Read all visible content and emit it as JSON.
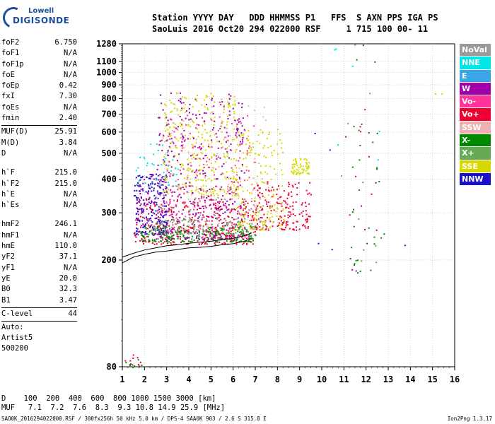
{
  "logo": {
    "line1": "Lowell",
    "line2": "DIGISONDE"
  },
  "header": {
    "line1": "Station YYYY DAY   DDD HHMMSS P1   FFS  S AXN PPS IGA PS",
    "line2": "SaoLuis 2016 Oct20 294 022000 RSF     1 715 100 00- 11"
  },
  "params": {
    "g1": [
      [
        "foF2",
        "6.750"
      ],
      [
        "foF1",
        "N/A"
      ],
      [
        "foF1p",
        "N/A"
      ],
      [
        "foE",
        "N/A"
      ],
      [
        "foEp",
        "0.42"
      ],
      [
        "fxI",
        "7.30"
      ],
      [
        "foEs",
        "N/A"
      ],
      [
        "fmin",
        "2.40"
      ]
    ],
    "g2": [
      [
        "MUF(D)",
        "25.91"
      ],
      [
        "M(D)",
        "3.84"
      ],
      [
        "D",
        "N/A"
      ]
    ],
    "g3": [
      [
        "h`F",
        "215.0"
      ],
      [
        "h`F2",
        "215.0"
      ],
      [
        "h`E",
        "N/A"
      ],
      [
        "h`Es",
        "N/A"
      ]
    ],
    "g4": [
      [
        "hmF2",
        "246.1"
      ],
      [
        "hmF1",
        "N/A"
      ],
      [
        "hmE",
        "110.0"
      ],
      [
        "yF2",
        "37.1"
      ],
      [
        "yF1",
        "N/A"
      ],
      [
        "yE",
        "20.0"
      ],
      [
        "B0",
        "32.3"
      ],
      [
        "B1",
        "3.47"
      ]
    ],
    "g5": [
      [
        "C-level",
        "44"
      ]
    ],
    "auto": [
      "Auto:",
      "Artist5",
      "500200"
    ]
  },
  "legend": [
    {
      "label": "NoVal",
      "color": "#9a9a9a"
    },
    {
      "label": "NNE",
      "color": "#00e6e6"
    },
    {
      "label": "E",
      "color": "#3aa6e8"
    },
    {
      "label": "W",
      "color": "#a000a8"
    },
    {
      "label": "Vo-",
      "color": "#ff3399"
    },
    {
      "label": "Vo+",
      "color": "#ee0033"
    },
    {
      "label": "SSW",
      "color": "#f0b0b0"
    },
    {
      "label": "X-",
      "color": "#008800"
    },
    {
      "label": "X+",
      "color": "#66aa55"
    },
    {
      "label": "SSE",
      "color": "#d8d800"
    },
    {
      "label": "NNW",
      "color": "#1a10c8"
    }
  ],
  "chart_data": {
    "type": "scatter",
    "title": "",
    "xlabel": "",
    "ylabel": "",
    "xlim": [
      1,
      16
    ],
    "ylim": [
      80,
      1280
    ],
    "xscale": "linear",
    "yscale": "log",
    "x_ticks": [
      1,
      2,
      3,
      4,
      5,
      6,
      7,
      8,
      9,
      10,
      11,
      12,
      13,
      14,
      15,
      16
    ],
    "y_ticks": [
      80,
      200,
      300,
      400,
      500,
      600,
      700,
      800,
      900,
      1000,
      1100,
      1280
    ],
    "grid": true,
    "legend_position": "right",
    "trace": {
      "name": "",
      "points": [
        [
          1.0,
          205
        ],
        [
          1.5,
          212
        ],
        [
          2.0,
          218
        ],
        [
          2.5,
          222
        ],
        [
          3.0,
          226
        ],
        [
          3.5,
          228
        ],
        [
          4.0,
          231
        ],
        [
          4.5,
          233
        ],
        [
          5.0,
          235
        ],
        [
          5.5,
          238
        ],
        [
          6.0,
          241
        ],
        [
          6.5,
          246
        ],
        [
          6.8,
          252
        ]
      ]
    },
    "trace2": {
      "points": [
        [
          1.0,
          195
        ],
        [
          1.5,
          205
        ],
        [
          2.0,
          210
        ],
        [
          2.5,
          214
        ],
        [
          3.0,
          216
        ],
        [
          3.5,
          219
        ],
        [
          4.0,
          222
        ],
        [
          4.5,
          223
        ],
        [
          5.0,
          225
        ],
        [
          5.5,
          228
        ],
        [
          6.0,
          230
        ],
        [
          6.5,
          235
        ],
        [
          6.8,
          240
        ]
      ]
    },
    "clusters": [
      {
        "series": "Vo+",
        "x": [
          1.5,
          7.0
        ],
        "y": [
          230,
          340
        ],
        "n": 350
      },
      {
        "series": "Vo+",
        "x": [
          7.0,
          9.5
        ],
        "y": [
          260,
          400
        ],
        "n": 180
      },
      {
        "series": "W",
        "x": [
          2.5,
          6.5
        ],
        "y": [
          240,
          850
        ],
        "n": 420
      },
      {
        "series": "W",
        "x": [
          1.6,
          3.0
        ],
        "y": [
          250,
          420
        ],
        "n": 120
      },
      {
        "series": "NNW",
        "x": [
          1.5,
          3.0
        ],
        "y": [
          250,
          420
        ],
        "n": 160
      },
      {
        "series": "SSE",
        "x": [
          2.8,
          6.2
        ],
        "y": [
          350,
          850
        ],
        "n": 300
      },
      {
        "series": "SSE",
        "x": [
          6.0,
          8.3
        ],
        "y": [
          260,
          620
        ],
        "n": 180
      },
      {
        "series": "SSE",
        "x": [
          8.6,
          9.4
        ],
        "y": [
          420,
          480
        ],
        "n": 60
      },
      {
        "series": "Vo-",
        "x": [
          2.8,
          7.0
        ],
        "y": [
          240,
          700
        ],
        "n": 200
      },
      {
        "series": "X-",
        "x": [
          1.8,
          7.0
        ],
        "y": [
          235,
          270
        ],
        "n": 180
      },
      {
        "series": "X+",
        "x": [
          2.0,
          7.0
        ],
        "y": [
          250,
          290
        ],
        "n": 120
      },
      {
        "series": "NNE",
        "x": [
          1.5,
          3.5
        ],
        "y": [
          380,
          560
        ],
        "n": 40
      },
      {
        "series": "SSW",
        "x": [
          3.0,
          7.5
        ],
        "y": [
          260,
          800
        ],
        "n": 90
      },
      {
        "series": "NoVal",
        "x": [
          2.5,
          7.5
        ],
        "y": [
          240,
          350
        ],
        "n": 60
      },
      {
        "series": "X-",
        "x": [
          11.2,
          11.8
        ],
        "y": [
          180,
          1280
        ],
        "n": 18
      },
      {
        "series": "X-",
        "x": [
          12.0,
          12.8
        ],
        "y": [
          180,
          1280
        ],
        "n": 14
      },
      {
        "series": "X+",
        "x": [
          10.8,
          12.5
        ],
        "y": [
          180,
          1280
        ],
        "n": 10
      },
      {
        "series": "Vo+",
        "x": [
          11.0,
          12.4
        ],
        "y": [
          190,
          1280
        ],
        "n": 8
      },
      {
        "series": "W",
        "x": [
          11.0,
          12.6
        ],
        "y": [
          180,
          1280
        ],
        "n": 8
      },
      {
        "series": "NNE",
        "x": [
          10.5,
          12.8
        ],
        "y": [
          180,
          1280
        ],
        "n": 6
      },
      {
        "series": "NNW",
        "x": [
          9.0,
          14.5
        ],
        "y": [
          220,
          780
        ],
        "n": 5
      },
      {
        "series": "Vo+",
        "x": [
          1.1,
          1.9
        ],
        "y": [
          80,
          90
        ],
        "n": 10
      },
      {
        "series": "X-",
        "x": [
          1.1,
          1.9
        ],
        "y": [
          80,
          90
        ],
        "n": 8
      },
      {
        "series": "SSE",
        "x": [
          15.0,
          15.4
        ],
        "y": [
          820,
          850
        ],
        "n": 2
      }
    ]
  },
  "bottom": {
    "line1": "D    100  200  400  600  800 1000 1500 3000 [km]",
    "line2": "MUF   7.1  7.2  7.6  8.3  9.3 10.8 14.9 25.9 [MHz]",
    "footer": "SAO0K_2016294022000.RSF / 300fx256h 50 kHz 5.0 km / DPS-4 SAA0K 903 / 2.6 S 315.8 E",
    "version": "Ion2Png 1.3.17"
  }
}
